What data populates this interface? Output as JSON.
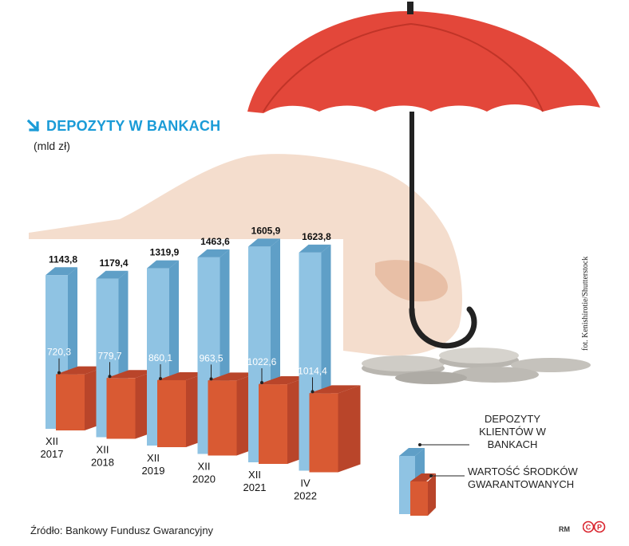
{
  "title": "DEPOZYTY W BANKACH",
  "unit": "(mld zł)",
  "source": "Źródło: Bankowy Fundusz Gwarancyjny",
  "photo_credit": "fot. Kenishirotie/Shutterstock",
  "signature": "RM",
  "colors": {
    "accent": "#1a9bd7",
    "deposits": "#8fc3e3",
    "guaranteed": "#d95a33",
    "deposits_side": "#5f9fc7",
    "guaranteed_side": "#b9452a",
    "umbrella": "#e3473a",
    "cp_logo": "#d9232d"
  },
  "legend": {
    "deposits": "DEPOZYTY KLIENTÓW W BANKACH",
    "guaranteed": "WARTOŚĆ ŚRODKÓW GWARANTOWANYCH"
  },
  "chart_data": {
    "type": "bar",
    "categories": [
      "XII 2017",
      "XII 2018",
      "XII 2019",
      "XII 2020",
      "XII 2021",
      "IV 2022"
    ],
    "series": [
      {
        "name": "DEPOZYTY KLIENTÓW W BANKACH",
        "values": [
          1143.8,
          1179.4,
          1319.9,
          1463.6,
          1605.9,
          1623.8
        ],
        "labels": [
          "1143,8",
          "1179,4",
          "1319,9",
          "1463,6",
          "1605,9",
          "1623,8"
        ]
      },
      {
        "name": "WARTOŚĆ ŚRODKÓW GWARANTOWANYCH",
        "values": [
          720.3,
          779.7,
          860.1,
          963.5,
          1022.6,
          1014.4
        ],
        "labels": [
          "720,3",
          "779,7",
          "860,1",
          "963,5",
          "1022,6",
          "1014,4"
        ]
      }
    ],
    "title": "DEPOZYTY W BANKACH",
    "ylabel": "(mld zł)",
    "legend_position": "right"
  }
}
